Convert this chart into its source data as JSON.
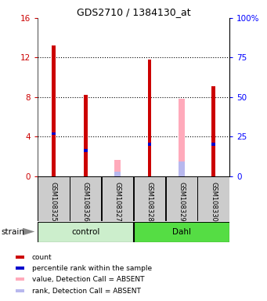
{
  "title": "GDS2710 / 1384130_at",
  "samples": [
    "GSM108325",
    "GSM108326",
    "GSM108327",
    "GSM108328",
    "GSM108329",
    "GSM108330"
  ],
  "groups": [
    "control",
    "control",
    "control",
    "Dahl",
    "Dahl",
    "Dahl"
  ],
  "red_bars": [
    13.2,
    8.2,
    0.05,
    11.8,
    0.05,
    9.1
  ],
  "blue_marker_y": [
    4.3,
    2.6,
    0.0,
    3.2,
    0.0,
    3.2
  ],
  "pink_bars": [
    0.0,
    0.0,
    1.6,
    0.0,
    7.8,
    0.0
  ],
  "lavender_bars": [
    0.0,
    0.0,
    0.45,
    0.0,
    1.5,
    0.0
  ],
  "ylim": [
    0,
    16
  ],
  "yticks_left": [
    0,
    4,
    8,
    12,
    16
  ],
  "yticks_right": [
    0,
    25,
    50,
    75,
    100
  ],
  "red_color": "#cc0000",
  "blue_color": "#0000cc",
  "pink_color": "#ffaabb",
  "lavender_color": "#b8b8ee",
  "control_color_light": "#cceecc",
  "dahl_color": "#55dd44",
  "bg_gray": "#cccccc",
  "legend_items": [
    "count",
    "percentile rank within the sample",
    "value, Detection Call = ABSENT",
    "rank, Detection Call = ABSENT"
  ],
  "legend_colors": [
    "#cc0000",
    "#0000cc",
    "#ffaabb",
    "#b8b8ee"
  ]
}
